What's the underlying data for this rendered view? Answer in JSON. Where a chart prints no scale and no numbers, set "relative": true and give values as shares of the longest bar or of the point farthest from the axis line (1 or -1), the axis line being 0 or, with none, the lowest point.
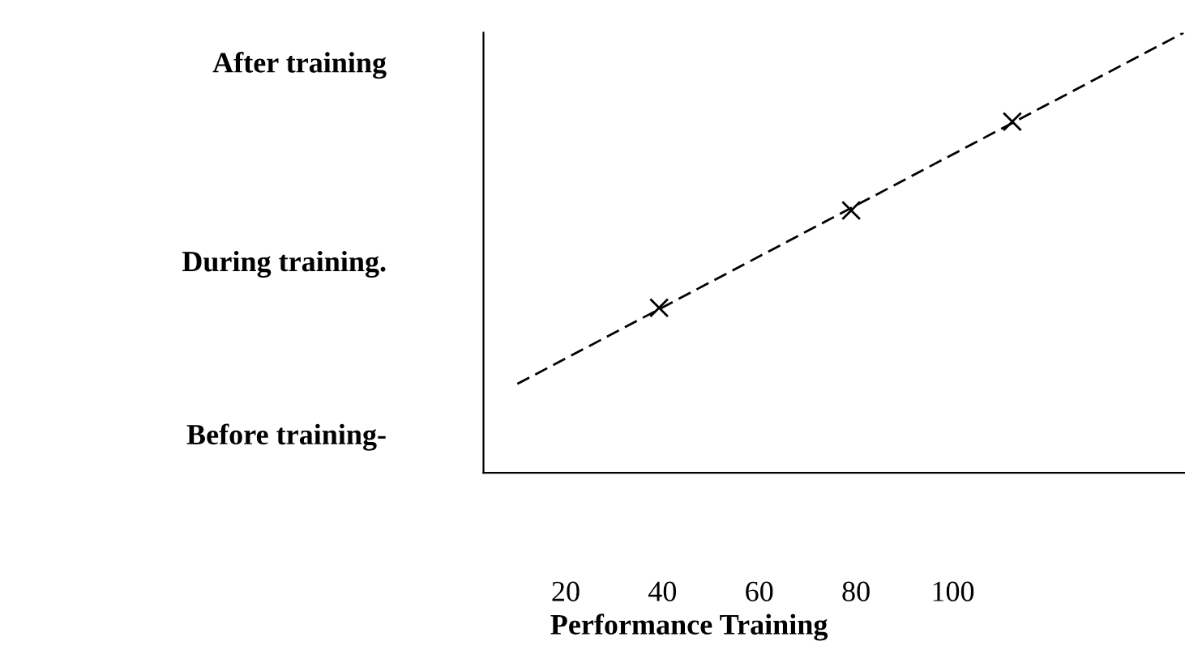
{
  "chart_data": {
    "type": "line",
    "xlabel": "Performance Training",
    "xlim": [
      3,
      148
    ],
    "xticks": [
      20,
      40,
      60,
      80,
      100
    ],
    "relative": true,
    "annotations": [
      "Before training-",
      "During training.",
      "After training"
    ],
    "series": [
      {
        "x": [
          10,
          147.7
        ],
        "values": [
          0.202,
          1
        ],
        "color": "#000000",
        "line_style": "dashed",
        "marker": "none"
      },
      {
        "type": "scatter",
        "x": [
          39.3,
          79,
          112.3
        ],
        "values": [
          0.375,
          0.596,
          0.798
        ],
        "color": "#000000",
        "marker": "cross"
      }
    ]
  }
}
